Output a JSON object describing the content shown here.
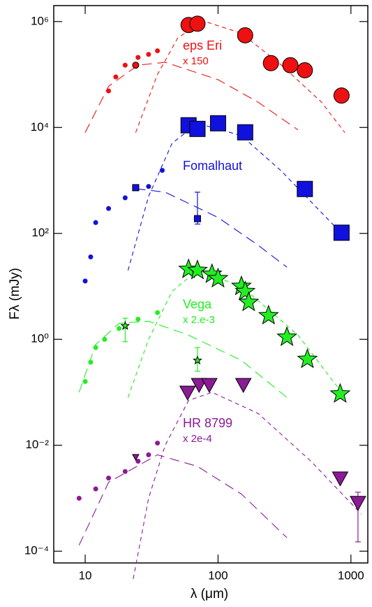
{
  "chart_data": {
    "type": "scatter",
    "xlog": true,
    "ylog": true,
    "xlabel": "λ (μm)",
    "ylabel": "Fλ (mJy)",
    "xlim": [
      5.8,
      1340
    ],
    "ylim": [
      6e-05,
      2000000
    ],
    "xticks": [
      10,
      100,
      1000
    ],
    "yticks": [
      {
        "value": 0.0001,
        "label": "10⁻⁴"
      },
      {
        "value": 0.01,
        "label": "10⁻²"
      },
      {
        "value": 1,
        "label": "10⁰"
      },
      {
        "value": 100,
        "label": "10²"
      },
      {
        "value": 10000,
        "label": "10⁴"
      },
      {
        "value": 1000000,
        "label": "10⁶"
      }
    ],
    "stars": [
      {
        "name": "eps Eri",
        "scale": "x 150",
        "color": "#ee1111",
        "photometry": {
          "marker": "circle",
          "x": [
            60,
            70,
            160,
            250,
            350,
            450,
            850
          ],
          "values": [
            860000,
            910000,
            550000,
            164000,
            150000,
            120000,
            40000
          ]
        },
        "photometry_small": {
          "marker": "circle",
          "x": [
            24
          ],
          "values": [
            150000
          ]
        },
        "spectrum": {
          "x": [
            15,
            17,
            20,
            25,
            30,
            35
          ],
          "values": [
            49000,
            90000,
            150000,
            210000,
            240000,
            280000
          ]
        },
        "models": [
          {
            "dash": "long",
            "x": [
              10,
              15,
              25,
              40,
              100,
              200,
              400
            ],
            "values": [
              8000,
              60000,
              150000,
              170000,
              80000,
              30000,
              9000
            ]
          },
          {
            "dash": "short",
            "x": [
              24,
              35,
              50,
              80,
              150,
              300,
              600,
              900
            ],
            "values": [
              8000,
              100000,
              500000,
              1000000,
              600000,
              150000,
              30000,
              8000
            ]
          }
        ],
        "errorbars": []
      },
      {
        "name": "Fomalhaut",
        "scale": null,
        "color": "#1111dd",
        "photometry": {
          "marker": "square",
          "x": [
            60,
            70,
            100,
            160,
            450,
            850
          ],
          "values": [
            11000,
            9400,
            12000,
            8100,
            690,
            103
          ]
        },
        "photometry_small": {
          "marker": "square",
          "x": [
            24,
            70
          ],
          "values": [
            730,
            190
          ]
        },
        "spectrum": {
          "x": [
            10,
            11,
            12,
            15,
            20,
            30,
            38
          ],
          "values": [
            12.6,
            36,
            160,
            295,
            470,
            770,
            1550
          ]
        },
        "models": [
          {
            "dash": "long",
            "x": [
              24,
              40,
              100,
              200,
              330
            ],
            "values": [
              700,
              600,
              200,
              60,
              23
            ]
          },
          {
            "dash": "short",
            "x": [
              21,
              30,
              45,
              70,
              150,
              300,
              850
            ],
            "values": [
              20,
              500,
              5000,
              12000,
              7000,
              1500,
              100
            ]
          }
        ],
        "errorbars": [
          {
            "x": 70,
            "low": 150,
            "high": 600
          }
        ]
      },
      {
        "name": "Vega",
        "scale": "x 2.e-3",
        "color": "#22ee22",
        "photometry": {
          "marker": "star",
          "x": [
            60,
            70,
            90,
            100,
            150,
            160,
            170,
            240,
            330,
            470,
            830
          ],
          "values": [
            21,
            20,
            17,
            14,
            10,
            8,
            5,
            2.8,
            1.1,
            0.42,
            0.093
          ]
        },
        "photometry_small": {
          "marker": "star",
          "x": [
            20,
            70
          ],
          "values": [
            1.8,
            0.4
          ]
        },
        "spectrum": {
          "x": [
            10,
            11,
            12,
            14,
            18,
            25,
            35
          ],
          "values": [
            0.16,
            0.37,
            0.7,
            1,
            1.6,
            2.4,
            3.2
          ]
        },
        "models": [
          {
            "dash": "long",
            "x": [
              9,
              12,
              18,
              30,
              60,
              150,
              330
            ],
            "values": [
              0.1,
              0.8,
              2,
              2.2,
              1.2,
              0.4,
              0.08
            ]
          },
          {
            "dash": "short",
            "x": [
              21,
              30,
              45,
              70,
              150,
              400,
              850
            ],
            "values": [
              0.08,
              1,
              8,
              20,
              10,
              1.2,
              0.1
            ]
          }
        ],
        "errorbars": [
          {
            "x": 20,
            "low": 0.9,
            "high": 2.5
          },
          {
            "x": 70,
            "low": 0.25,
            "high": 0.7
          }
        ]
      },
      {
        "name": "HR 8799",
        "scale": "x 2e-4",
        "color": "#8b1a96",
        "photometry": {
          "marker": "triangle",
          "x": [
            59,
            72,
            86,
            155,
            830,
            1130
          ],
          "values": [
            0.1,
            0.14,
            0.14,
            0.14,
            0.0024,
            0.00083
          ]
        },
        "photometry_small": {
          "marker": "triangle",
          "x": [
            24
          ],
          "values": [
            0.006
          ]
        },
        "spectrum": {
          "x": [
            9,
            12,
            15,
            20,
            25,
            30,
            35
          ],
          "values": [
            0.001,
            0.0015,
            0.0024,
            0.0032,
            0.005,
            0.0066,
            0.011
          ]
        },
        "models": [
          {
            "dash": "long",
            "x": [
              9,
              15,
              35,
              70,
              150,
              330
            ],
            "values": [
              0.00013,
              0.002,
              0.0066,
              0.004,
              0.0012,
              0.00018
            ]
          },
          {
            "dash": "short",
            "x": [
              23,
              30,
              40,
              60,
              90,
              200,
              500,
              1200
            ],
            "values": [
              3e-05,
              0.001,
              0.01,
              0.07,
              0.1,
              0.04,
              0.005,
              0.0005
            ]
          }
        ],
        "errorbars": [
          {
            "x": 1130,
            "low": 0.00015,
            "high": 0.0013
          }
        ]
      }
    ]
  }
}
